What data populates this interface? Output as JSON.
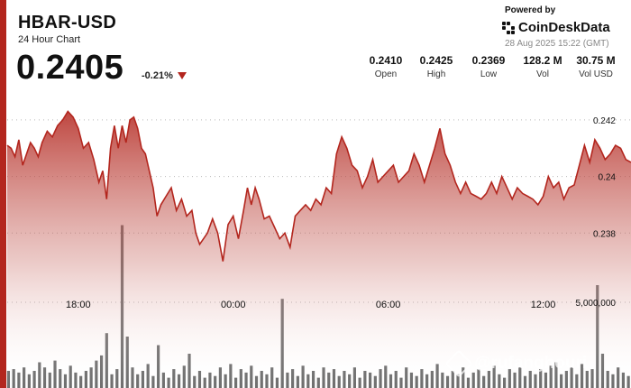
{
  "header": {
    "pair": "HBAR-USD",
    "subtitle": "24 Hour Chart",
    "price": "0.2405",
    "change": "-0.21%"
  },
  "branding": {
    "powered_by": "Powered by",
    "name": "CoinDeskData",
    "timestamp": "28 Aug 2025 15:22 (GMT)"
  },
  "stats": [
    {
      "value": "0.2410",
      "label": "Open"
    },
    {
      "value": "0.2425",
      "label": "High"
    },
    {
      "value": "0.2369",
      "label": "Low"
    },
    {
      "value": "128.2 M",
      "label": "Vol"
    },
    {
      "value": "30.75 M",
      "label": "Vol USD"
    }
  ],
  "watermark": {
    "text": "@rufanghouri"
  },
  "colors": {
    "accent": "#b3261e",
    "line": "#b3261e",
    "volume": "#6f6f6f"
  },
  "chart_data": {
    "type": "area",
    "price_axis": {
      "ticks": [
        "0.242",
        "0.24",
        "0.238"
      ],
      "tick_values": [
        0.242,
        0.24,
        0.238
      ],
      "ylim": [
        0.23635,
        0.24305
      ]
    },
    "volume_axis": {
      "ticks": [
        "5,000,000"
      ],
      "tick_values": [
        5000000
      ],
      "ylim": [
        0,
        10000000
      ]
    },
    "x_ticks": [
      {
        "label": "18:00",
        "hour": 18
      },
      {
        "label": "00:00",
        "hour": 24
      },
      {
        "label": "06:00",
        "hour": 30
      },
      {
        "label": "12:00",
        "hour": 36
      }
    ],
    "x_range_hours": [
      15.25,
      39.4
    ],
    "grid": "dotted",
    "price": [
      [
        15.25,
        0.2411
      ],
      [
        15.4,
        0.241
      ],
      [
        15.55,
        0.2407
      ],
      [
        15.7,
        0.2413
      ],
      [
        15.85,
        0.2404
      ],
      [
        16.0,
        0.2408
      ],
      [
        16.15,
        0.2412
      ],
      [
        16.3,
        0.241
      ],
      [
        16.45,
        0.2407
      ],
      [
        16.6,
        0.2412
      ],
      [
        16.8,
        0.2416
      ],
      [
        17.0,
        0.2414
      ],
      [
        17.2,
        0.2418
      ],
      [
        17.4,
        0.242
      ],
      [
        17.6,
        0.2423
      ],
      [
        17.8,
        0.2421
      ],
      [
        18.0,
        0.2417
      ],
      [
        18.2,
        0.241
      ],
      [
        18.4,
        0.2412
      ],
      [
        18.6,
        0.2406
      ],
      [
        18.8,
        0.2398
      ],
      [
        18.95,
        0.2402
      ],
      [
        19.1,
        0.2392
      ],
      [
        19.25,
        0.241
      ],
      [
        19.4,
        0.2418
      ],
      [
        19.55,
        0.241
      ],
      [
        19.7,
        0.2418
      ],
      [
        19.85,
        0.2412
      ],
      [
        20.0,
        0.242
      ],
      [
        20.15,
        0.2421
      ],
      [
        20.3,
        0.2417
      ],
      [
        20.45,
        0.241
      ],
      [
        20.6,
        0.2408
      ],
      [
        20.75,
        0.2402
      ],
      [
        20.9,
        0.2396
      ],
      [
        21.05,
        0.2386
      ],
      [
        21.2,
        0.239
      ],
      [
        21.4,
        0.2393
      ],
      [
        21.6,
        0.2396
      ],
      [
        21.8,
        0.2388
      ],
      [
        22.0,
        0.2392
      ],
      [
        22.2,
        0.2386
      ],
      [
        22.4,
        0.2388
      ],
      [
        22.55,
        0.238
      ],
      [
        22.7,
        0.2376
      ],
      [
        22.85,
        0.2378
      ],
      [
        23.0,
        0.238
      ],
      [
        23.2,
        0.2385
      ],
      [
        23.4,
        0.238
      ],
      [
        23.6,
        0.237
      ],
      [
        23.8,
        0.2383
      ],
      [
        24.0,
        0.2386
      ],
      [
        24.2,
        0.2378
      ],
      [
        24.4,
        0.2388
      ],
      [
        24.55,
        0.2396
      ],
      [
        24.7,
        0.239
      ],
      [
        24.85,
        0.2396
      ],
      [
        25.0,
        0.2392
      ],
      [
        25.2,
        0.2385
      ],
      [
        25.4,
        0.2386
      ],
      [
        25.6,
        0.2382
      ],
      [
        25.8,
        0.2378
      ],
      [
        26.0,
        0.238
      ],
      [
        26.2,
        0.2375
      ],
      [
        26.4,
        0.2386
      ],
      [
        26.6,
        0.2388
      ],
      [
        26.8,
        0.239
      ],
      [
        27.0,
        0.2388
      ],
      [
        27.2,
        0.2392
      ],
      [
        27.4,
        0.239
      ],
      [
        27.6,
        0.2396
      ],
      [
        27.8,
        0.2394
      ],
      [
        28.0,
        0.2408
      ],
      [
        28.2,
        0.2414
      ],
      [
        28.4,
        0.241
      ],
      [
        28.6,
        0.2404
      ],
      [
        28.8,
        0.2402
      ],
      [
        29.0,
        0.2396
      ],
      [
        29.2,
        0.24
      ],
      [
        29.4,
        0.2406
      ],
      [
        29.6,
        0.2398
      ],
      [
        29.8,
        0.24
      ],
      [
        30.0,
        0.2402
      ],
      [
        30.2,
        0.2404
      ],
      [
        30.4,
        0.2398
      ],
      [
        30.6,
        0.24
      ],
      [
        30.8,
        0.2402
      ],
      [
        31.0,
        0.2408
      ],
      [
        31.2,
        0.2404
      ],
      [
        31.4,
        0.2398
      ],
      [
        31.6,
        0.2404
      ],
      [
        31.8,
        0.241
      ],
      [
        32.0,
        0.2417
      ],
      [
        32.2,
        0.2408
      ],
      [
        32.4,
        0.2404
      ],
      [
        32.6,
        0.2398
      ],
      [
        32.8,
        0.2394
      ],
      [
        33.0,
        0.2398
      ],
      [
        33.2,
        0.2394
      ],
      [
        33.4,
        0.2393
      ],
      [
        33.6,
        0.2392
      ],
      [
        33.8,
        0.2394
      ],
      [
        34.0,
        0.2398
      ],
      [
        34.2,
        0.2394
      ],
      [
        34.4,
        0.24
      ],
      [
        34.6,
        0.2396
      ],
      [
        34.8,
        0.2392
      ],
      [
        35.0,
        0.2396
      ],
      [
        35.2,
        0.2394
      ],
      [
        35.4,
        0.2393
      ],
      [
        35.6,
        0.2392
      ],
      [
        35.8,
        0.239
      ],
      [
        36.0,
        0.2393
      ],
      [
        36.2,
        0.24
      ],
      [
        36.4,
        0.2396
      ],
      [
        36.6,
        0.2398
      ],
      [
        36.8,
        0.2392
      ],
      [
        37.0,
        0.2396
      ],
      [
        37.2,
        0.2397
      ],
      [
        37.4,
        0.2404
      ],
      [
        37.6,
        0.2411
      ],
      [
        37.8,
        0.2405
      ],
      [
        38.0,
        0.2413
      ],
      [
        38.2,
        0.241
      ],
      [
        38.4,
        0.2406
      ],
      [
        38.6,
        0.2408
      ],
      [
        38.8,
        0.2411
      ],
      [
        39.0,
        0.241
      ],
      [
        39.2,
        0.2406
      ],
      [
        39.4,
        0.2405
      ]
    ],
    "volume_note_units": "base volume per bar",
    "volume": [
      [
        15.3,
        1000000
      ],
      [
        15.5,
        1100000
      ],
      [
        15.7,
        900000
      ],
      [
        15.9,
        1200000
      ],
      [
        16.1,
        800000
      ],
      [
        16.3,
        1000000
      ],
      [
        16.5,
        1500000
      ],
      [
        16.7,
        1200000
      ],
      [
        16.9,
        900000
      ],
      [
        17.1,
        1600000
      ],
      [
        17.3,
        1100000
      ],
      [
        17.5,
        800000
      ],
      [
        17.7,
        1300000
      ],
      [
        17.9,
        900000
      ],
      [
        18.1,
        700000
      ],
      [
        18.3,
        1000000
      ],
      [
        18.5,
        1200000
      ],
      [
        18.7,
        1600000
      ],
      [
        18.9,
        1900000
      ],
      [
        19.1,
        3200000
      ],
      [
        19.3,
        800000
      ],
      [
        19.5,
        1100000
      ],
      [
        19.7,
        9500000
      ],
      [
        19.9,
        3000000
      ],
      [
        20.1,
        1200000
      ],
      [
        20.3,
        800000
      ],
      [
        20.5,
        1000000
      ],
      [
        20.7,
        1400000
      ],
      [
        20.9,
        700000
      ],
      [
        21.1,
        2500000
      ],
      [
        21.3,
        900000
      ],
      [
        21.5,
        600000
      ],
      [
        21.7,
        1100000
      ],
      [
        21.9,
        800000
      ],
      [
        22.1,
        1300000
      ],
      [
        22.3,
        2000000
      ],
      [
        22.5,
        700000
      ],
      [
        22.7,
        1000000
      ],
      [
        22.9,
        600000
      ],
      [
        23.1,
        900000
      ],
      [
        23.3,
        700000
      ],
      [
        23.5,
        1200000
      ],
      [
        23.7,
        800000
      ],
      [
        23.9,
        1400000
      ],
      [
        24.1,
        600000
      ],
      [
        24.3,
        1100000
      ],
      [
        24.5,
        900000
      ],
      [
        24.7,
        1300000
      ],
      [
        24.9,
        700000
      ],
      [
        25.1,
        1000000
      ],
      [
        25.3,
        800000
      ],
      [
        25.5,
        1200000
      ],
      [
        25.7,
        600000
      ],
      [
        25.9,
        5200000
      ],
      [
        26.1,
        900000
      ],
      [
        26.3,
        1100000
      ],
      [
        26.5,
        700000
      ],
      [
        26.7,
        1300000
      ],
      [
        26.9,
        800000
      ],
      [
        27.1,
        1000000
      ],
      [
        27.3,
        600000
      ],
      [
        27.5,
        1200000
      ],
      [
        27.7,
        900000
      ],
      [
        27.9,
        1100000
      ],
      [
        28.1,
        700000
      ],
      [
        28.3,
        1000000
      ],
      [
        28.5,
        800000
      ],
      [
        28.7,
        1200000
      ],
      [
        28.9,
        600000
      ],
      [
        29.1,
        1000000
      ],
      [
        29.3,
        900000
      ],
      [
        29.5,
        700000
      ],
      [
        29.7,
        1100000
      ],
      [
        29.9,
        1300000
      ],
      [
        30.1,
        800000
      ],
      [
        30.3,
        1000000
      ],
      [
        30.5,
        600000
      ],
      [
        30.7,
        1200000
      ],
      [
        30.9,
        900000
      ],
      [
        31.1,
        700000
      ],
      [
        31.3,
        1100000
      ],
      [
        31.5,
        800000
      ],
      [
        31.7,
        1000000
      ],
      [
        31.9,
        1400000
      ],
      [
        32.1,
        900000
      ],
      [
        32.3,
        700000
      ],
      [
        32.5,
        1000000
      ],
      [
        32.7,
        800000
      ],
      [
        32.9,
        1200000
      ],
      [
        33.1,
        600000
      ],
      [
        33.3,
        900000
      ],
      [
        33.5,
        1100000
      ],
      [
        33.7,
        700000
      ],
      [
        33.9,
        1000000
      ],
      [
        34.1,
        1300000
      ],
      [
        34.3,
        800000
      ],
      [
        34.5,
        600000
      ],
      [
        34.7,
        1100000
      ],
      [
        34.9,
        900000
      ],
      [
        35.1,
        1200000
      ],
      [
        35.3,
        700000
      ],
      [
        35.5,
        1000000
      ],
      [
        35.7,
        800000
      ],
      [
        35.9,
        1100000
      ],
      [
        36.1,
        900000
      ],
      [
        36.3,
        1300000
      ],
      [
        36.5,
        1500000
      ],
      [
        36.7,
        800000
      ],
      [
        36.9,
        1000000
      ],
      [
        37.1,
        1200000
      ],
      [
        37.3,
        800000
      ],
      [
        37.5,
        1400000
      ],
      [
        37.7,
        1000000
      ],
      [
        37.9,
        1100000
      ],
      [
        38.1,
        6000000
      ],
      [
        38.3,
        2000000
      ],
      [
        38.5,
        1000000
      ],
      [
        38.7,
        800000
      ],
      [
        38.9,
        1200000
      ],
      [
        39.1,
        900000
      ],
      [
        39.3,
        700000
      ]
    ]
  }
}
